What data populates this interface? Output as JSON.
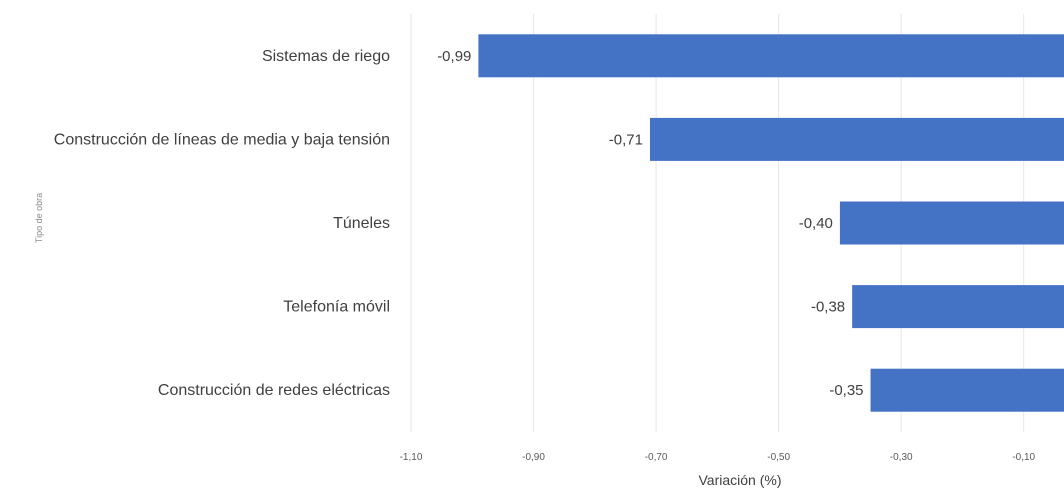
{
  "chart_data": {
    "type": "bar",
    "orientation": "horizontal",
    "categories": [
      "Sistemas de riego",
      "Construcción de líneas de media y baja tensión",
      "Túneles",
      "Telefonía móvil",
      "Construcción de redes eléctricas"
    ],
    "values": [
      -0.99,
      -0.71,
      -0.4,
      -0.38,
      -0.35
    ],
    "value_labels": [
      "-0,99",
      "-0,71",
      "-0,40",
      "-0,38",
      "-0,35"
    ],
    "xlabel": "Variación (%)",
    "ylabel": "Tipo de obra",
    "xlim": [
      -1.1,
      0.0
    ],
    "x_ticks": [
      -1.1,
      -0.9,
      -0.7,
      -0.5,
      -0.3,
      -0.1
    ],
    "x_tick_labels": [
      "-1,10",
      "-0,90",
      "-0,70",
      "-0,50",
      "-0,30",
      "-0,10"
    ],
    "bar_color": "#4472C4",
    "grid": "vertical",
    "legend": "none"
  }
}
